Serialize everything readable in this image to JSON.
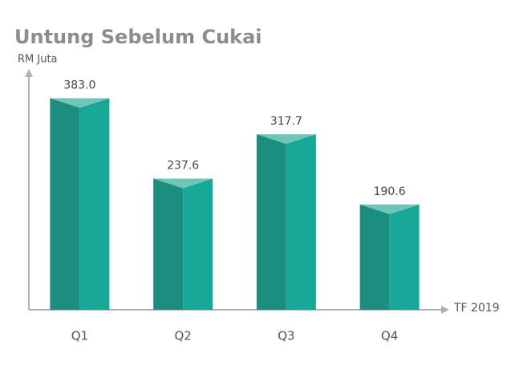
{
  "chart_data": {
    "type": "prism-bar",
    "title": "Untung Sebelum Cukai",
    "y_label": "RM Juta",
    "x_label": "TF 2019",
    "categories": [
      "Q1",
      "Q2",
      "Q3",
      "Q4"
    ],
    "values": [
      383.0,
      237.6,
      317.7,
      190.6
    ],
    "value_labels": [
      "383.0",
      "237.6",
      "317.7",
      "190.6"
    ],
    "ylim": [
      0,
      430
    ],
    "colors": {
      "left": "#1b8e80",
      "right": "#18a898",
      "top": "#6fc6b8"
    }
  }
}
